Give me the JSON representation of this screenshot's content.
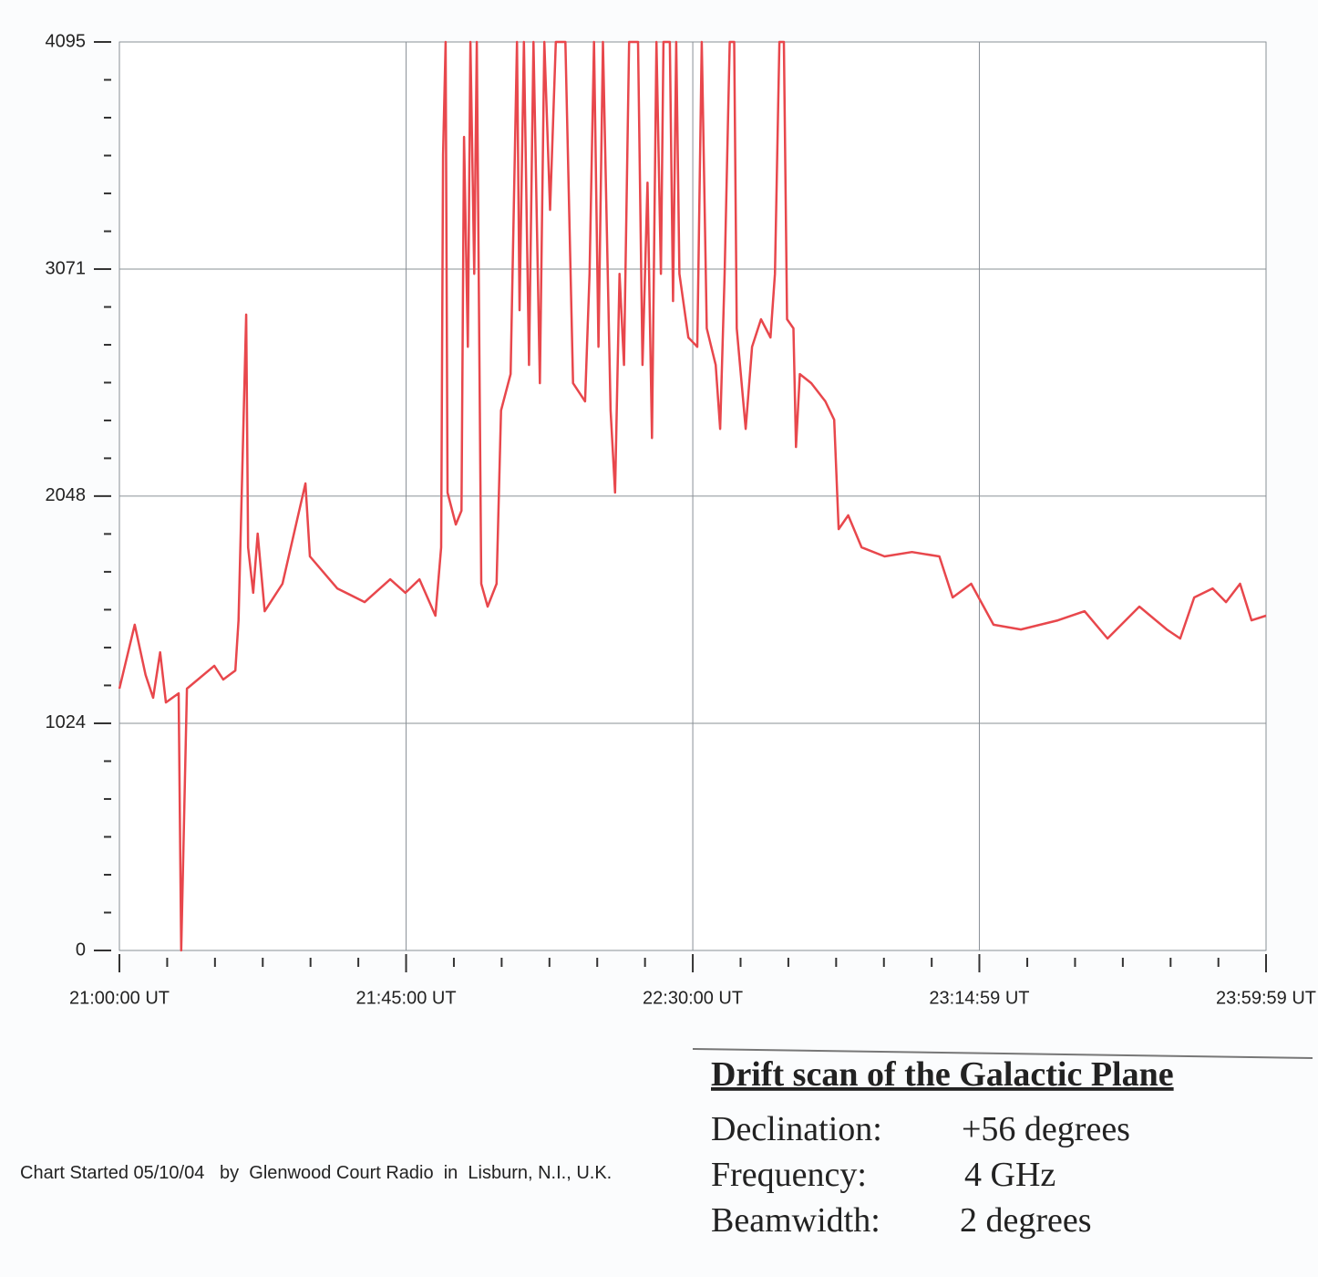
{
  "chart_data": {
    "type": "line",
    "color": "#e8474c",
    "grid": true,
    "xlim": [
      0,
      179.98
    ],
    "ylim": [
      0,
      4095
    ],
    "xticks": [
      {
        "value": 0,
        "label": "21:00:00 UT"
      },
      {
        "value": 45,
        "label": "21:45:00 UT"
      },
      {
        "value": 90,
        "label": "22:30:00 UT"
      },
      {
        "value": 134.98,
        "label": "23:14:59 UT"
      },
      {
        "value": 179.98,
        "label": "23:59:59 UT"
      }
    ],
    "xminor_ticks": [
      7.5,
      15,
      22.5,
      30,
      37.5,
      52.5,
      60,
      67.5,
      75,
      82.5,
      97.5,
      105,
      112.5,
      120,
      127.5,
      142.5,
      150,
      157.5,
      165,
      172.5
    ],
    "yticks": [
      0,
      1024,
      2048,
      3071,
      4095
    ],
    "yminor_ticks": [
      170.7,
      341.3,
      512,
      682.7,
      853.3,
      1194.7,
      1365.3,
      1536,
      1706.7,
      1877.3,
      2218.5,
      2389,
      2559.5,
      2730,
      2900.5,
      3241.7,
      3412.3,
      3583,
      3753.7,
      3924.3
    ],
    "x": [
      0,
      2.4,
      4.1,
      5.3,
      6.4,
      7.3,
      9.3,
      9.7,
      10.3,
      10.6,
      14.9,
      16.3,
      18.2,
      18.7,
      19.9,
      20.2,
      21.0,
      21.7,
      22.8,
      25.6,
      29.2,
      29.9,
      34.2,
      38.5,
      42.5,
      44.9,
      47.1,
      49.6,
      50.5,
      50.8,
      51.2,
      51.5,
      52.8,
      53.7,
      54.1,
      54.7,
      55.1,
      55.7,
      56.1,
      56.8,
      57.8,
      59.2,
      59.9,
      61.4,
      62.4,
      62.8,
      63.5,
      64.3,
      65.0,
      66.0,
      66.7,
      67.6,
      68.5,
      70.0,
      71.2,
      73.1,
      73.8,
      74.5,
      75.2,
      75.9,
      77.1,
      77.8,
      78.5,
      79.2,
      80.0,
      81.4,
      82.1,
      82.9,
      83.6,
      84.3,
      85.0,
      85.4,
      86.4,
      86.9,
      87.4,
      87.9,
      89.3,
      90.7,
      91.4,
      92.2,
      93.6,
      94.3,
      95.0,
      95.8,
      96.5,
      96.9,
      98.3,
      99.3,
      100.7,
      102.2,
      102.9,
      103.6,
      104.3,
      104.8,
      105.8,
      106.2,
      106.8,
      108.6,
      110.8,
      112.2,
      112.9,
      114.4,
      116.5,
      120.1,
      124.4,
      128.7,
      130.8,
      133.7,
      137.2,
      141.5,
      147.3,
      151.5,
      155.1,
      160.1,
      164.4,
      166.5,
      168.7,
      171.6,
      173.7,
      175.9,
      177.7,
      179.98
    ],
    "values": [
      1180,
      1468,
      1242,
      1139,
      1344,
      1118,
      1159,
      0,
      789,
      1180,
      1283,
      1221,
      1262,
      1488,
      2866,
      1817,
      1612,
      1879,
      1529,
      1653,
      2105,
      1776,
      1632,
      1570,
      1673,
      1612,
      1673,
      1509,
      1817,
      3585,
      4095,
      2064,
      1920,
      1982,
      3667,
      2721,
      4095,
      3050,
      4095,
      1653,
      1550,
      1653,
      2434,
      2598,
      4095,
      2886,
      4095,
      2639,
      4095,
      2557,
      4095,
      3338,
      4095,
      4095,
      2557,
      2475,
      3050,
      4095,
      2721,
      4095,
      2434,
      2064,
      3050,
      2639,
      4095,
      4095,
      2639,
      3461,
      2310,
      4095,
      3050,
      4095,
      4095,
      2927,
      4095,
      3050,
      2763,
      2721,
      4095,
      2804,
      2639,
      2351,
      3050,
      4095,
      4095,
      2804,
      2351,
      2721,
      2845,
      2763,
      3050,
      4095,
      4095,
      2845,
      2804,
      2269,
      2598,
      2557,
      2475,
      2392,
      1899,
      1961,
      1817,
      1776,
      1796,
      1776,
      1591,
      1653,
      1468,
      1447,
      1488,
      1529,
      1406,
      1550,
      1447,
      1406,
      1591,
      1632,
      1570,
      1653,
      1488,
      1509
    ]
  },
  "caption": {
    "title": "Drift scan of the Galactic Plane",
    "rows": [
      [
        "Declination:",
        "+56 degrees"
      ],
      [
        "Frequency:",
        "4 GHz"
      ],
      [
        "Beamwidth:",
        "2 degrees"
      ]
    ]
  },
  "footnote": "Chart Started 05/10/04   by  Glenwood Court Radio  in  Lisburn, N.I., U.K."
}
